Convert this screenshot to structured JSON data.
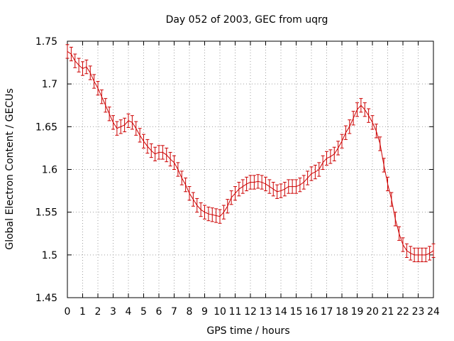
{
  "chart_data": {
    "type": "line",
    "title": "Day 052 of 2003, GEC from uqrg",
    "xlabel": "GPS time / hours",
    "ylabel": "Global Electron Content / GECUs",
    "xlim": [
      0,
      24
    ],
    "ylim": [
      1.45,
      1.75
    ],
    "grid": true,
    "x_ticks": [
      "0",
      "1",
      "2",
      "3",
      "4",
      "5",
      "6",
      "7",
      "8",
      "9",
      "10",
      "11",
      "12",
      "13",
      "14",
      "15",
      "16",
      "17",
      "18",
      "19",
      "20",
      "21",
      "22",
      "23",
      "24"
    ],
    "y_ticks": [
      "1.45",
      "1.5",
      "1.55",
      "1.6",
      "1.65",
      "1.7",
      "1.75"
    ],
    "series": [
      {
        "name": "GEC",
        "color": "#cc0000",
        "error": 0.008,
        "points": [
          [
            0.0,
            1.738
          ],
          [
            0.25,
            1.735
          ],
          [
            0.5,
            1.727
          ],
          [
            0.75,
            1.722
          ],
          [
            1.0,
            1.718
          ],
          [
            1.25,
            1.72
          ],
          [
            1.5,
            1.713
          ],
          [
            1.75,
            1.703
          ],
          [
            2.0,
            1.695
          ],
          [
            2.25,
            1.685
          ],
          [
            2.5,
            1.675
          ],
          [
            2.75,
            1.665
          ],
          [
            3.0,
            1.655
          ],
          [
            3.25,
            1.648
          ],
          [
            3.5,
            1.65
          ],
          [
            3.75,
            1.652
          ],
          [
            4.0,
            1.657
          ],
          [
            4.25,
            1.655
          ],
          [
            4.5,
            1.648
          ],
          [
            4.75,
            1.64
          ],
          [
            5.0,
            1.633
          ],
          [
            5.25,
            1.627
          ],
          [
            5.5,
            1.622
          ],
          [
            5.75,
            1.618
          ],
          [
            6.0,
            1.62
          ],
          [
            6.25,
            1.62
          ],
          [
            6.5,
            1.617
          ],
          [
            6.75,
            1.612
          ],
          [
            7.0,
            1.608
          ],
          [
            7.25,
            1.6
          ],
          [
            7.5,
            1.59
          ],
          [
            7.75,
            1.582
          ],
          [
            8.0,
            1.572
          ],
          [
            8.25,
            1.565
          ],
          [
            8.5,
            1.558
          ],
          [
            8.75,
            1.553
          ],
          [
            9.0,
            1.55
          ],
          [
            9.25,
            1.548
          ],
          [
            9.5,
            1.547
          ],
          [
            9.75,
            1.546
          ],
          [
            10.0,
            1.545
          ],
          [
            10.25,
            1.55
          ],
          [
            10.5,
            1.557
          ],
          [
            10.75,
            1.567
          ],
          [
            11.0,
            1.572
          ],
          [
            11.25,
            1.577
          ],
          [
            11.5,
            1.58
          ],
          [
            11.75,
            1.583
          ],
          [
            12.0,
            1.585
          ],
          [
            12.25,
            1.585
          ],
          [
            12.5,
            1.586
          ],
          [
            12.75,
            1.585
          ],
          [
            13.0,
            1.583
          ],
          [
            13.25,
            1.58
          ],
          [
            13.5,
            1.577
          ],
          [
            13.75,
            1.574
          ],
          [
            14.0,
            1.575
          ],
          [
            14.25,
            1.577
          ],
          [
            14.5,
            1.58
          ],
          [
            14.75,
            1.58
          ],
          [
            15.0,
            1.58
          ],
          [
            15.25,
            1.582
          ],
          [
            15.5,
            1.585
          ],
          [
            15.75,
            1.59
          ],
          [
            16.0,
            1.595
          ],
          [
            16.25,
            1.597
          ],
          [
            16.5,
            1.6
          ],
          [
            16.75,
            1.608
          ],
          [
            17.0,
            1.613
          ],
          [
            17.25,
            1.615
          ],
          [
            17.5,
            1.618
          ],
          [
            17.75,
            1.625
          ],
          [
            18.0,
            1.633
          ],
          [
            18.25,
            1.643
          ],
          [
            18.5,
            1.65
          ],
          [
            18.75,
            1.66
          ],
          [
            19.0,
            1.67
          ],
          [
            19.25,
            1.675
          ],
          [
            19.5,
            1.67
          ],
          [
            19.75,
            1.663
          ],
          [
            20.0,
            1.655
          ],
          [
            20.25,
            1.645
          ],
          [
            20.5,
            1.63
          ],
          [
            20.75,
            1.605
          ],
          [
            21.0,
            1.583
          ],
          [
            21.25,
            1.565
          ],
          [
            21.5,
            1.542
          ],
          [
            21.75,
            1.525
          ],
          [
            22.0,
            1.512
          ],
          [
            22.25,
            1.505
          ],
          [
            22.5,
            1.502
          ],
          [
            22.75,
            1.5
          ],
          [
            23.0,
            1.5
          ],
          [
            23.25,
            1.5
          ],
          [
            23.5,
            1.5
          ],
          [
            23.75,
            1.502
          ],
          [
            24.0,
            1.505
          ]
        ]
      }
    ]
  }
}
